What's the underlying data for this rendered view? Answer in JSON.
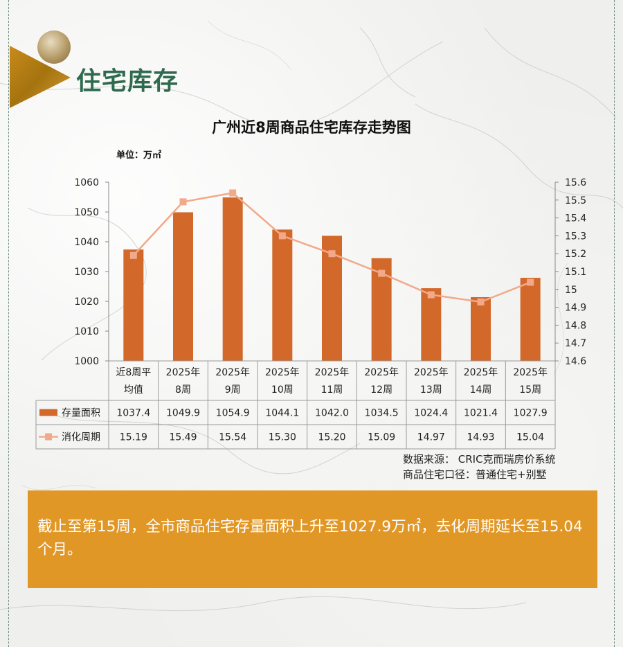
{
  "section_title": "住宅库存",
  "chart_data": {
    "type": "bar+line",
    "title": "广州近8周商品住宅库存走势图",
    "unit_label": "单位：万㎡",
    "categories": [
      [
        "近8周平",
        "均值"
      ],
      [
        "2025年",
        "8周"
      ],
      [
        "2025年",
        "9周"
      ],
      [
        "2025年",
        "10周"
      ],
      [
        "2025年",
        "11周"
      ],
      [
        "2025年",
        "12周"
      ],
      [
        "2025年",
        "13周"
      ],
      [
        "2025年",
        "14周"
      ],
      [
        "2025年",
        "15周"
      ]
    ],
    "series": [
      {
        "name": "存量面积",
        "type": "bar",
        "axis": "left",
        "color": "#d2692a",
        "values": [
          1037.4,
          1049.9,
          1054.9,
          1044.1,
          1042.0,
          1034.5,
          1024.4,
          1021.4,
          1027.9
        ],
        "labels": [
          "1037.4",
          "1049.9",
          "1054.9",
          "1044.1",
          "1042.0",
          "1034.5",
          "1024.4",
          "1021.4",
          "1027.9"
        ]
      },
      {
        "name": "消化周期",
        "type": "line",
        "axis": "right",
        "color": "#f2a98a",
        "values": [
          15.19,
          15.49,
          15.54,
          15.3,
          15.2,
          15.09,
          14.97,
          14.93,
          15.04
        ],
        "labels": [
          "15.19",
          "15.49",
          "15.54",
          "15.30",
          "15.20",
          "15.09",
          "14.97",
          "14.93",
          "15.04"
        ]
      }
    ],
    "left_axis": {
      "ylim": [
        1000,
        1060
      ],
      "ticks": [
        "1000",
        "1010",
        "1020",
        "1030",
        "1040",
        "1050",
        "1060"
      ]
    },
    "right_axis": {
      "ylim": [
        14.6,
        15.6
      ],
      "ticks": [
        "14.6",
        "14.7",
        "14.8",
        "14.9",
        "15",
        "15.1",
        "15.2",
        "15.3",
        "15.4",
        "15.5",
        "15.6"
      ]
    },
    "grid": false,
    "legend": "data-table"
  },
  "source_line1": "数据来源：  CRIC克而瑞房价系统",
  "source_line2": "商品住宅口径：普通住宅+别墅",
  "summary_text": "截止至第15周，全市商品住宅存量面积上升至1027.9万㎡，去化周期延长至15.04个月。"
}
